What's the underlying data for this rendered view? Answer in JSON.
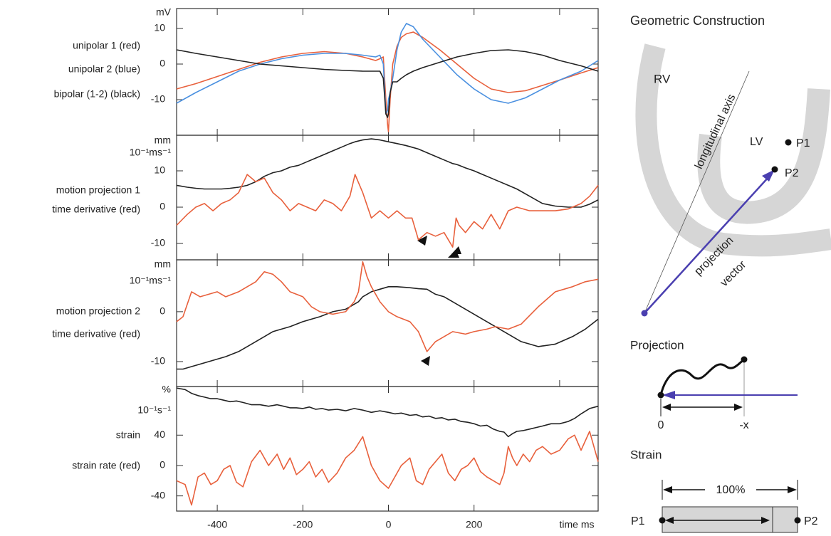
{
  "chart_data": [
    {
      "type": "line",
      "y_unit": "mV",
      "x": [
        -495,
        -450,
        -400,
        -350,
        -300,
        -250,
        -200,
        -150,
        -100,
        -60,
        -30,
        -20,
        -12,
        -6,
        -2,
        0,
        4,
        10,
        20,
        30,
        42,
        58,
        80,
        120,
        160,
        200,
        240,
        280,
        320,
        360,
        400,
        450,
        490
      ],
      "xlim": [
        -495,
        490
      ],
      "xticks": [
        -400,
        -200,
        0,
        200,
        400
      ],
      "ylim": [
        -20,
        15.6
      ],
      "yticks": [
        10,
        0,
        -10
      ],
      "series": [
        {
          "name": "unipolar 1 (red)",
          "color": "#e8603c",
          "values": [
            -7,
            -5.5,
            -3.5,
            -1.5,
            0.5,
            2,
            3,
            3.5,
            3,
            2,
            1,
            1.5,
            2,
            -10,
            -17,
            -19,
            -10,
            0,
            5,
            7.5,
            8.5,
            9,
            7.5,
            4,
            0,
            -4,
            -7,
            -8,
            -7.5,
            -6,
            -4.5,
            -2.5,
            -1
          ]
        },
        {
          "name": "unipolar 2 (blue)",
          "color": "#4a90e0",
          "values": [
            -11,
            -8,
            -5,
            -2,
            0,
            1.5,
            2.5,
            3,
            3,
            2.5,
            2,
            2.5,
            0,
            -14,
            -13,
            -10,
            -8,
            -4,
            4,
            9,
            11.4,
            10.5,
            7,
            2,
            -3,
            -7,
            -10,
            -11,
            -9.5,
            -7,
            -4.5,
            -2,
            1
          ]
        },
        {
          "name": "bipolar (1-2) (black)",
          "color": "#222222",
          "values": [
            4,
            3,
            2,
            1,
            0,
            -0.5,
            -1,
            -1.5,
            -1.8,
            -2,
            -2,
            -2,
            -4,
            -14,
            -15,
            -14,
            -8,
            -5,
            -5,
            -4,
            -3,
            -2,
            -1,
            0.5,
            2,
            3,
            3.8,
            4,
            3.5,
            2.5,
            1,
            -0.5,
            -2
          ]
        }
      ]
    },
    {
      "type": "line",
      "y_unit": "mm",
      "y_unit_rate": "10⁻¹ms⁻¹",
      "x": [
        -495,
        -470,
        -450,
        -430,
        -410,
        -390,
        -370,
        -350,
        -330,
        -310,
        -290,
        -270,
        -250,
        -230,
        -210,
        -190,
        -170,
        -150,
        -130,
        -110,
        -90,
        -78,
        -60,
        -40,
        -20,
        0,
        20,
        40,
        55,
        70,
        90,
        110,
        130,
        150,
        158,
        165,
        180,
        200,
        220,
        240,
        260,
        280,
        300,
        330,
        360,
        390,
        420,
        450,
        470,
        490
      ],
      "xlim": [
        -495,
        490
      ],
      "xticks": [
        -400,
        -200,
        0,
        200,
        400
      ],
      "ylim": [
        -14.5,
        19.8
      ],
      "yticks": [
        10,
        0,
        -10
      ],
      "series": [
        {
          "name": "motion projection 1",
          "color": "#222222",
          "values": [
            6,
            5.5,
            5.2,
            5,
            5,
            5,
            5.2,
            5.5,
            6,
            7,
            8.5,
            9.5,
            10,
            11,
            11.5,
            12.5,
            13.5,
            14.5,
            15.5,
            16.5,
            17.5,
            18,
            18.5,
            18.8,
            18.5,
            18,
            17.5,
            17,
            16.5,
            16,
            15,
            14,
            13,
            12,
            11.8,
            11.5,
            10.8,
            10,
            9,
            8,
            7,
            6,
            5,
            3,
            1,
            0.3,
            0,
            0,
            0.8,
            2
          ]
        },
        {
          "name": "time derivative (red)",
          "color": "#e8603c",
          "values": [
            -5,
            -2,
            0,
            1,
            -1,
            1,
            2,
            4,
            9,
            7,
            8,
            4,
            2,
            -1,
            1,
            0,
            -1,
            2,
            1,
            -1,
            3,
            9,
            4,
            -3,
            -1,
            -3,
            -1,
            -3,
            -3,
            -9,
            -7,
            -8,
            -7,
            -11,
            -3,
            -5,
            -7,
            -4,
            -6,
            -2,
            -6,
            -1,
            0,
            -1,
            -1,
            -1,
            -0.5,
            1,
            3,
            6
          ]
        }
      ]
    },
    {
      "type": "line",
      "y_unit": "mm",
      "y_unit_rate": "10⁻¹ms⁻¹",
      "x": [
        -495,
        -480,
        -460,
        -440,
        -420,
        -400,
        -380,
        -350,
        -330,
        -310,
        -290,
        -270,
        -250,
        -230,
        -200,
        -180,
        -160,
        -130,
        -100,
        -80,
        -70,
        -60,
        -50,
        -40,
        -20,
        0,
        20,
        50,
        70,
        90,
        100,
        110,
        130,
        150,
        180,
        200,
        230,
        250,
        280,
        310,
        350,
        390,
        430,
        460,
        490
      ],
      "xlim": [
        -495,
        490
      ],
      "xticks": [
        -400,
        -200,
        0,
        200,
        400
      ],
      "ylim": [
        -15,
        10.4
      ],
      "yticks": [
        0,
        -10
      ],
      "series": [
        {
          "name": "motion projection 2",
          "color": "#222222",
          "values": [
            -11.5,
            -11.5,
            -11,
            -10.5,
            -10,
            -9.5,
            -9,
            -8,
            -7,
            -6,
            -5,
            -4,
            -3.5,
            -3,
            -2,
            -1.5,
            -1,
            0,
            0.5,
            1.5,
            2,
            3,
            3.5,
            4,
            4.5,
            5,
            5,
            4.8,
            4.6,
            4.5,
            4,
            3.5,
            3,
            2,
            0.5,
            -0.5,
            -2,
            -3,
            -4.5,
            -6,
            -7,
            -6.5,
            -5,
            -3.5,
            -1.5
          ]
        },
        {
          "name": "time derivative (red)",
          "color": "#e8603c",
          "values": [
            -2,
            -1,
            4,
            3,
            3.5,
            4,
            3,
            4,
            5,
            6,
            8,
            7.5,
            6,
            4,
            3,
            1,
            0,
            -0.5,
            0,
            2,
            4,
            10,
            7,
            5,
            2,
            0,
            -1,
            -2,
            -4,
            -8,
            -7,
            -6,
            -5,
            -4,
            -4.5,
            -4,
            -3.5,
            -3,
            -3.5,
            -2.5,
            1,
            4,
            5,
            6,
            6.5
          ]
        }
      ]
    },
    {
      "type": "line",
      "y_unit": "%",
      "y_unit_rate": "10⁻¹s⁻¹",
      "xlabel": "time ms",
      "x": [
        -495,
        -475,
        -460,
        -445,
        -430,
        -415,
        -400,
        -385,
        -370,
        -355,
        -340,
        -320,
        -300,
        -280,
        -260,
        -245,
        -230,
        -215,
        -200,
        -185,
        -170,
        -155,
        -140,
        -120,
        -100,
        -80,
        -60,
        -40,
        -20,
        0,
        15,
        30,
        50,
        65,
        80,
        95,
        110,
        125,
        140,
        155,
        170,
        185,
        200,
        215,
        230,
        245,
        260,
        270,
        280,
        290,
        300,
        315,
        330,
        345,
        360,
        380,
        400,
        420,
        435,
        450,
        470,
        490
      ],
      "xlim": [
        -495,
        490
      ],
      "xticks": [
        -400,
        -200,
        0,
        200
      ],
      "ylim": [
        -60,
        104
      ],
      "yticks": [
        40,
        0,
        -40
      ],
      "series": [
        {
          "name": "strain",
          "color": "#222222",
          "values": [
            102,
            100,
            95,
            92,
            90,
            88,
            88,
            86,
            84,
            85,
            83,
            80,
            80,
            78,
            80,
            78,
            76,
            76,
            75,
            77,
            74,
            75,
            73,
            74,
            72,
            75,
            73,
            70,
            72,
            70,
            68,
            69,
            66,
            67,
            64,
            65,
            62,
            63,
            60,
            61,
            58,
            57,
            55,
            52,
            53,
            48,
            45,
            44,
            38,
            42,
            45,
            46,
            48,
            50,
            52,
            55,
            55,
            58,
            62,
            68,
            75,
            78
          ]
        },
        {
          "name": "strain rate (red)",
          "color": "#e8603c",
          "values": [
            -20,
            -25,
            -52,
            -15,
            -10,
            -25,
            -20,
            -5,
            0,
            -22,
            -28,
            5,
            20,
            0,
            15,
            -5,
            10,
            -12,
            -5,
            5,
            -15,
            -5,
            -22,
            -10,
            10,
            20,
            38,
            0,
            -20,
            -30,
            -15,
            0,
            10,
            -20,
            -25,
            -5,
            5,
            15,
            -10,
            -20,
            -5,
            0,
            10,
            -8,
            -15,
            -20,
            -25,
            -10,
            25,
            10,
            0,
            15,
            5,
            20,
            25,
            15,
            20,
            35,
            40,
            20,
            45,
            5
          ]
        }
      ]
    }
  ],
  "diagram": {
    "title": "Geometric Construction",
    "rv": "RV",
    "axis": "longitudinal axis",
    "lv": "LV",
    "p1": "P1",
    "p2": "P2",
    "vector_1": "projection",
    "vector_2": "vector",
    "projection": {
      "title": "Projection",
      "zero": "0",
      "minus_x": "-x"
    },
    "strain": {
      "title": "Strain",
      "full": "100%",
      "p1": "P1",
      "p2": "P2"
    }
  }
}
